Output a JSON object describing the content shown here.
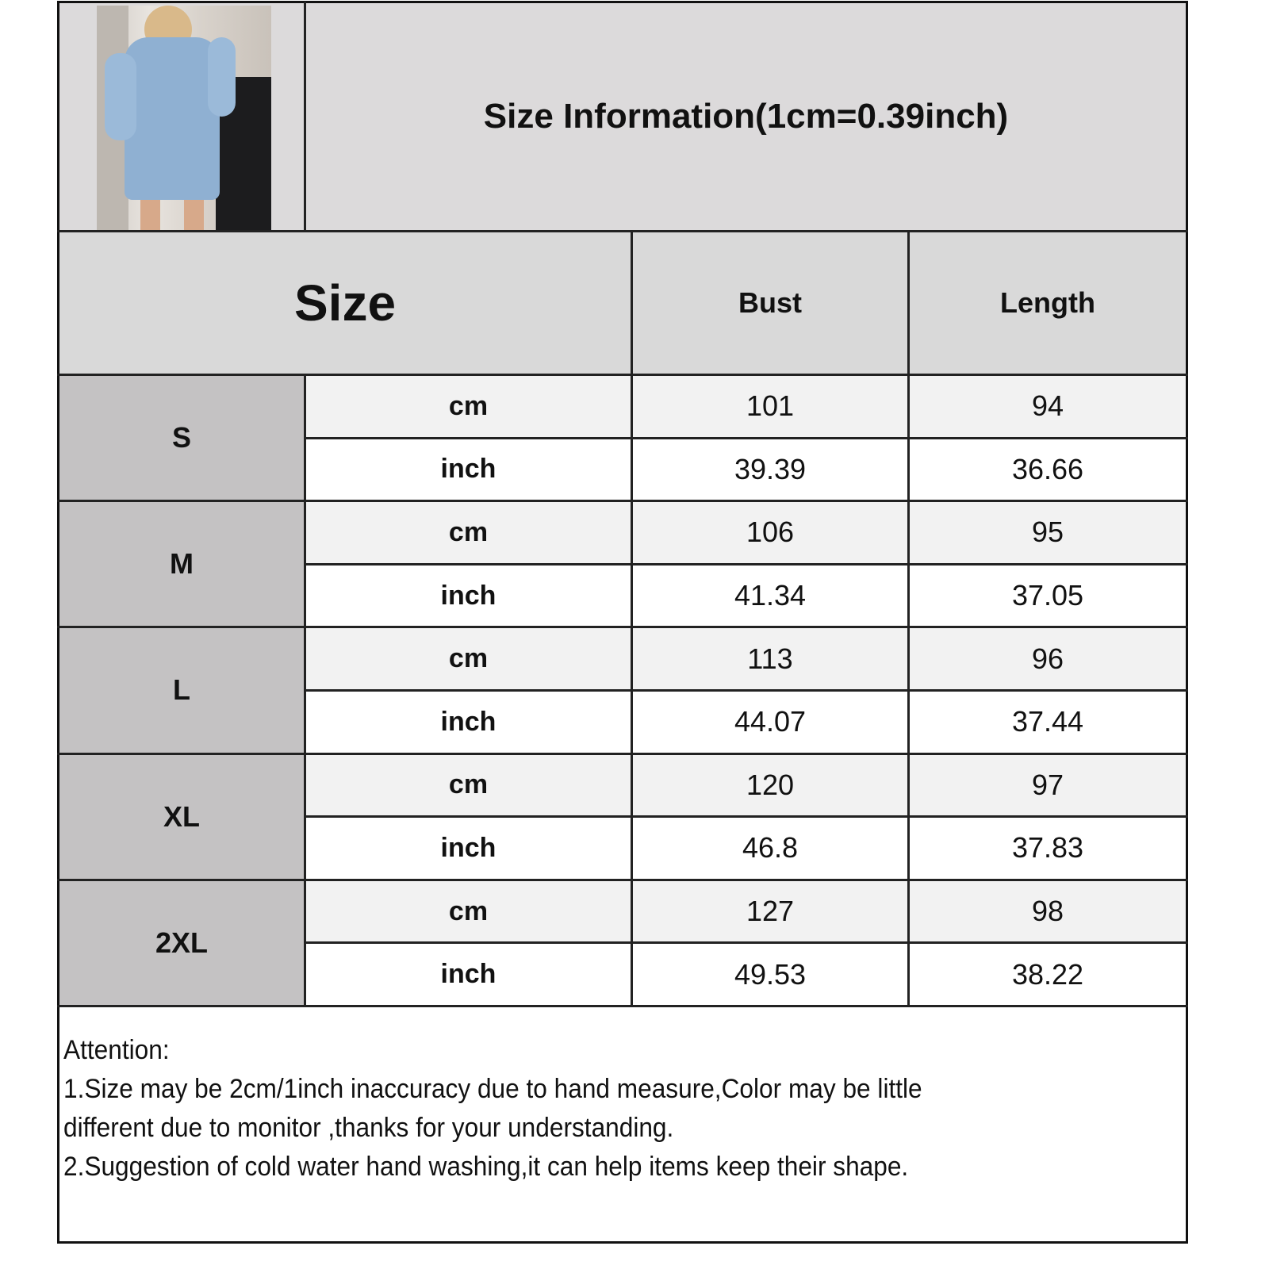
{
  "title": "Size Information(1cm=0.39inch)",
  "header": {
    "size": "Size",
    "bust": "Bust",
    "length": "Length"
  },
  "units": {
    "cm": "cm",
    "inch": "inch"
  },
  "rows": [
    {
      "size": "S",
      "cm": {
        "bust": "101",
        "length": "94"
      },
      "inch": {
        "bust": "39.39",
        "length": "36.66"
      }
    },
    {
      "size": "M",
      "cm": {
        "bust": "106",
        "length": "95"
      },
      "inch": {
        "bust": "41.34",
        "length": "37.05"
      }
    },
    {
      "size": "L",
      "cm": {
        "bust": "113",
        "length": "96"
      },
      "inch": {
        "bust": "44.07",
        "length": "37.44"
      }
    },
    {
      "size": "XL",
      "cm": {
        "bust": "120",
        "length": "97"
      },
      "inch": {
        "bust": "46.8",
        "length": "37.83"
      }
    },
    {
      "size": "2XL",
      "cm": {
        "bust": "127",
        "length": "98"
      },
      "inch": {
        "bust": "49.53",
        "length": "38.22"
      }
    }
  ],
  "attention": {
    "heading": "Attention:",
    "line1": "1.Size may be 2cm/1inch inaccuracy due to hand measure,Color may be little",
    "line1b": "different due to monitor ,thanks for your understanding.",
    "line2": "2.Suggestion of cold water hand washing,it can help items keep their shape."
  },
  "colors": {
    "title_bg": "#dcdadb",
    "header_bg": "#d9d9d9",
    "size_label_bg": "#c4c2c3",
    "cm_row_bg": "#f2f2f2",
    "inch_row_bg": "#ffffff",
    "dress": "#8fb0d2"
  }
}
